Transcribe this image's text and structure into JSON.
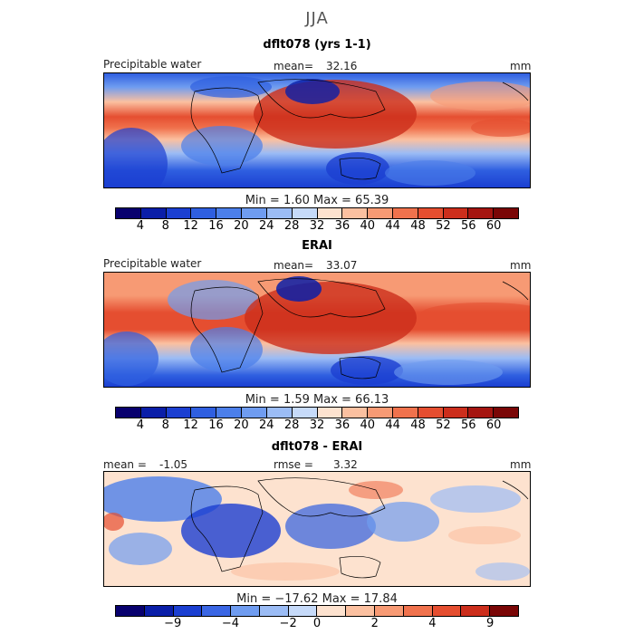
{
  "figure": {
    "title": "JJA"
  },
  "panels": [
    {
      "title": "dflt078 (yrs 1-1)",
      "field": "Precipitable water",
      "stat_label": "mean=",
      "stat_value": "32.16",
      "units": "mm",
      "minmax": "Min =    1.60  Max =  65.39",
      "palette": "absolute"
    },
    {
      "title": "ERAI",
      "field": "Precipitable water",
      "stat_label": "mean=",
      "stat_value": "33.07",
      "units": "mm",
      "minmax": "Min =    1.59  Max =  66.13",
      "palette": "absolute"
    },
    {
      "title": "dflt078 - ERAI",
      "mean_label": "mean =",
      "mean_value": "-1.05",
      "rmse_label": "rmse =",
      "rmse_value": "3.32",
      "units": "mm",
      "minmax": "Min = −17.62  Max =  17.84",
      "palette": "difference"
    }
  ],
  "colorbar_abs": {
    "ticks": [
      "4",
      "8",
      "12",
      "16",
      "20",
      "24",
      "28",
      "32",
      "36",
      "40",
      "44",
      "48",
      "52",
      "56",
      "60"
    ],
    "colors": [
      "#08006e",
      "#0a1ea8",
      "#1b3fd1",
      "#2f5fe0",
      "#4c7fea",
      "#6f9cf0",
      "#9bbcf5",
      "#c6daf9",
      "#fde2cf",
      "#fbc0a0",
      "#f79a74",
      "#f0724d",
      "#e54e30",
      "#cc2e1c",
      "#a51510",
      "#7a0606"
    ]
  },
  "colorbar_diff": {
    "ticks": [
      "−9",
      "−4",
      "−2",
      "0",
      "2",
      "4",
      "9"
    ],
    "colors": [
      "#08006e",
      "#0a1ea8",
      "#1b3fd1",
      "#3a66e4",
      "#6f9cf0",
      "#9bbcf5",
      "#c6daf9",
      "#fde2cf",
      "#fbc0a0",
      "#f79a74",
      "#f0724d",
      "#e54e30",
      "#cc2e1c",
      "#7a0606"
    ]
  }
}
